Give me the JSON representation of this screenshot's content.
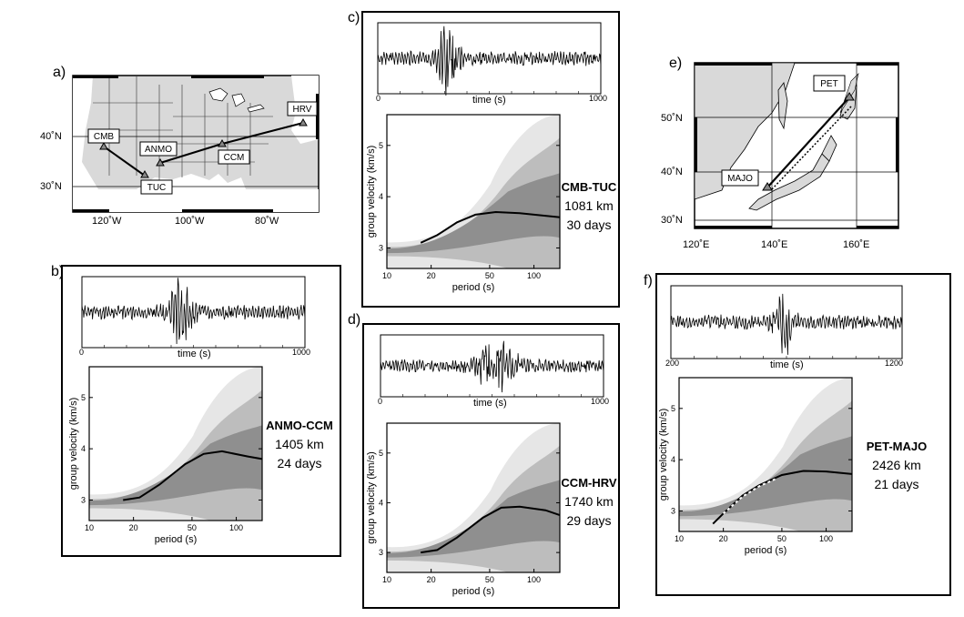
{
  "panels": {
    "a": {
      "letter": "a)",
      "lat_labels": [
        "40˚N",
        "30˚N"
      ],
      "lon_labels": [
        "120˚W",
        "100˚W",
        "80˚W"
      ],
      "stations": [
        "CMB",
        "ANMO",
        "TUC",
        "CCM",
        "HRV"
      ]
    },
    "b": {
      "letter": "b)",
      "time_ticks": [
        "0",
        "1000"
      ],
      "time_label": "time (s)",
      "pair": "ANMO-CCM",
      "distance": "1405 km",
      "duration": "24 days"
    },
    "c": {
      "letter": "c)",
      "time_ticks": [
        "0",
        "1000"
      ],
      "time_label": "time (s)",
      "pair": "CMB-TUC",
      "distance": "1081 km",
      "duration": "30 days"
    },
    "d": {
      "letter": "d)",
      "time_ticks": [
        "0",
        "1000"
      ],
      "time_label": "time (s)",
      "pair": "CCM-HRV",
      "distance": "1740 km",
      "duration": "29 days"
    },
    "e": {
      "letter": "e)",
      "lat_labels": [
        "50˚N",
        "40˚N",
        "30˚N"
      ],
      "lon_labels": [
        "120˚E",
        "140˚E",
        "160˚E"
      ],
      "stations": [
        "PET",
        "MAJO"
      ]
    },
    "f": {
      "letter": "f)",
      "time_ticks": [
        "200",
        "1200"
      ],
      "time_label": "time (s)",
      "pair": "PET-MAJO",
      "distance": "2426 km",
      "duration": "21 days"
    }
  },
  "dispersion_axes": {
    "ylabel": "group velocity (km/s)",
    "xlabel": "period (s)",
    "y_ticks": [
      "3",
      "4",
      "5"
    ],
    "x_ticks": [
      "10",
      "20",
      "50",
      "100"
    ]
  },
  "colors": {
    "light": "#e6e6e6",
    "mid": "#bdbdbd",
    "dark": "#8f8f8f",
    "darkest": "#6a6a6a",
    "land": "#d9d9d9"
  }
}
